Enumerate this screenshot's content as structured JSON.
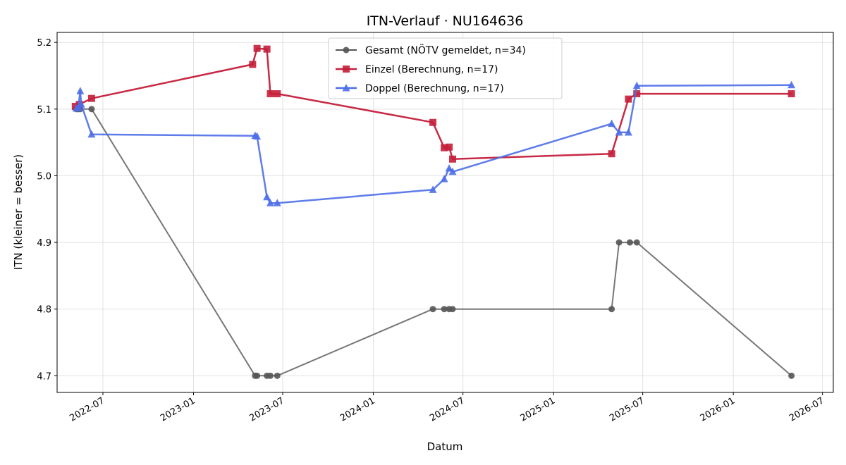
{
  "chart_data": {
    "type": "line",
    "title": "ITN-Verlauf · NU164636",
    "xlabel": "Datum",
    "ylabel": "ITN  (kleiner = besser)",
    "ylim": [
      4.675,
      5.215
    ],
    "xlim": [
      "2022-03-30",
      "2026-07-23"
    ],
    "y_ticks": [
      "4.7",
      "4.8",
      "4.9",
      "5.0",
      "5.1",
      "5.2"
    ],
    "x_ticks": [
      "2022-07",
      "2023-01",
      "2023-07",
      "2024-01",
      "2024-07",
      "2025-01",
      "2025-07",
      "2026-01",
      "2026-07"
    ],
    "grid": true,
    "legend_position": "top-center",
    "series": [
      {
        "name": "Gesamt (NÖTV gemeldet, n=34)",
        "color": "#555555",
        "marker": "circle",
        "points": [
          [
            "2022-05-08",
            5.1
          ],
          [
            "2022-05-12",
            5.1
          ],
          [
            "2022-05-16",
            5.1
          ],
          [
            "2022-06-08",
            5.1
          ],
          [
            "2023-05-06",
            4.7
          ],
          [
            "2023-05-10",
            4.7
          ],
          [
            "2023-05-30",
            4.7
          ],
          [
            "2023-06-06",
            4.7
          ],
          [
            "2023-06-20",
            4.7
          ],
          [
            "2024-05-01",
            4.8
          ],
          [
            "2024-05-24",
            4.8
          ],
          [
            "2024-06-03",
            4.8
          ],
          [
            "2024-06-10",
            4.8
          ],
          [
            "2025-04-29",
            4.8
          ],
          [
            "2025-05-14",
            4.9
          ],
          [
            "2025-06-05",
            4.9
          ],
          [
            "2025-06-19",
            4.9
          ],
          [
            "2026-04-29",
            4.7
          ]
        ]
      },
      {
        "name": "Einzel (Berechnung, n=17)",
        "color": "#c41e3a",
        "marker": "square",
        "points": [
          [
            "2022-05-06",
            5.104
          ],
          [
            "2022-05-14",
            5.107
          ],
          [
            "2022-06-08",
            5.116
          ],
          [
            "2023-05-01",
            5.167
          ],
          [
            "2023-05-10",
            5.191
          ],
          [
            "2023-05-30",
            5.19
          ],
          [
            "2023-06-06",
            5.123
          ],
          [
            "2023-06-20",
            5.123
          ],
          [
            "2024-05-01",
            5.08
          ],
          [
            "2024-05-24",
            5.042
          ],
          [
            "2024-06-03",
            5.043
          ],
          [
            "2024-06-10",
            5.025
          ],
          [
            "2025-04-29",
            5.033
          ],
          [
            "2025-06-02",
            5.115
          ],
          [
            "2025-06-19",
            5.123
          ],
          [
            "2026-04-29",
            5.123
          ]
        ]
      },
      {
        "name": "Doppel (Berechnung, n=17)",
        "color": "#4c6ee8",
        "marker": "triangle",
        "points": [
          [
            "2022-05-08",
            5.101
          ],
          [
            "2022-05-12",
            5.102
          ],
          [
            "2022-05-16",
            5.127
          ],
          [
            "2022-05-18",
            5.107
          ],
          [
            "2022-06-08",
            5.062
          ],
          [
            "2023-05-06",
            5.06
          ],
          [
            "2023-05-10",
            5.059
          ],
          [
            "2023-05-30",
            4.968
          ],
          [
            "2023-06-06",
            4.959
          ],
          [
            "2023-06-20",
            4.959
          ],
          [
            "2024-05-01",
            4.979
          ],
          [
            "2024-05-24",
            4.995
          ],
          [
            "2024-06-03",
            5.011
          ],
          [
            "2024-06-10",
            5.006
          ],
          [
            "2025-04-29",
            5.078
          ],
          [
            "2025-05-14",
            5.065
          ],
          [
            "2025-06-02",
            5.065
          ],
          [
            "2025-06-19",
            5.135
          ],
          [
            "2026-04-29",
            5.136
          ]
        ]
      }
    ]
  }
}
